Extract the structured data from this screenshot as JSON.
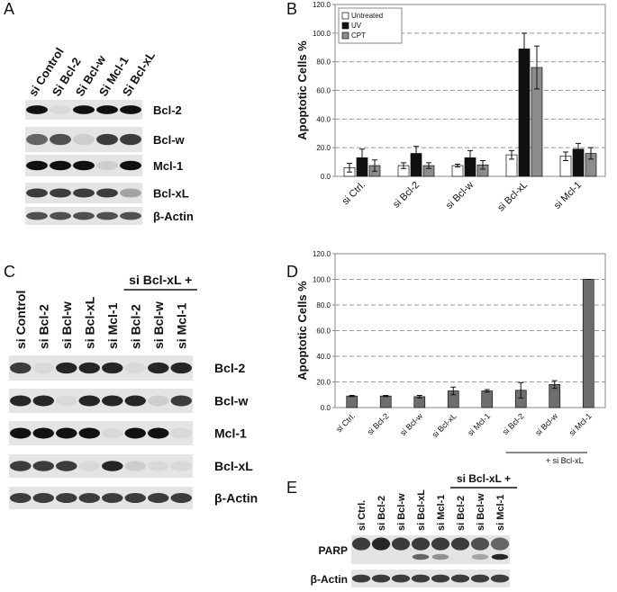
{
  "panels": [
    "A",
    "B",
    "C",
    "D",
    "E"
  ],
  "blot_a": {
    "lanes": [
      "si Control",
      "Si Bcl-2",
      "Si Bcl-w",
      "Si Mcl-1",
      "Si Bcl-xL"
    ],
    "rows": [
      "Bcl-2",
      "Bcl-w",
      "Mcl-1",
      "Bcl-xL",
      "β-Actin"
    ]
  },
  "blot_c": {
    "group_label": "si Bcl-xL +",
    "lanes": [
      "si Control",
      "si Bcl-2",
      "si Bcl-w",
      "si Bcl-xL",
      "si Mcl-1",
      "si Bcl-2",
      "si Bcl-w",
      "si Mcl-1"
    ],
    "rows": [
      "Bcl-2",
      "Bcl-w",
      "Mcl-1",
      "Bcl-xL",
      "β-Actin"
    ]
  },
  "blot_e": {
    "group_label": "si Bcl-xL +",
    "lanes": [
      "si Ctrl.",
      "si Bcl-2",
      "si Bcl-w",
      "si Bcl-xL",
      "si Mcl-1",
      "si Bcl-2",
      "si Bcl-w",
      "si Mcl-1"
    ],
    "rows": [
      "PARP",
      "β-Actin"
    ]
  },
  "chart_data": [
    {
      "type": "bar",
      "y_label": "Apoptotic Cells %",
      "categories": [
        "si Ctrl.",
        "si Bcl-2",
        "si Bcl-w",
        "si Bcl-xL",
        "si Mcl-1"
      ],
      "series": [
        {
          "name": "Untreated",
          "color": "#ffffff",
          "values": [
            6,
            7.5,
            7.5,
            15,
            14
          ],
          "errors": [
            3,
            2,
            1,
            3,
            3
          ]
        },
        {
          "name": "UV",
          "color": "#111111",
          "values": [
            13,
            16,
            13,
            89,
            19
          ],
          "errors": [
            6,
            5,
            5,
            11,
            4
          ]
        },
        {
          "name": "CPT",
          "color": "#8c8c8c",
          "values": [
            7.5,
            7.5,
            8,
            76,
            16
          ],
          "errors": [
            4,
            2,
            3,
            15,
            4
          ]
        }
      ],
      "ylim": [
        0,
        120
      ],
      "yticks": [
        {
          "value": 0,
          "label": "0.0"
        },
        {
          "value": 20,
          "label": "20.0"
        },
        {
          "value": 40,
          "label": "40.0"
        },
        {
          "value": 60,
          "label": "60.0"
        },
        {
          "value": 80,
          "label": "80.0"
        },
        {
          "value": 100,
          "label": "100.0"
        },
        {
          "value": 120,
          "label": "120.0"
        }
      ],
      "grid": true,
      "legend": "upper left"
    },
    {
      "type": "bar",
      "y_label": "Apoptotic Cells %",
      "group_label": "+ si Bcl-xL",
      "categories": [
        "si Ctrl.",
        "si Bcl-2",
        "si Bcl-w",
        "si Bcl-xL",
        "si Mcl-1",
        "si Bcl-2",
        "si Bcl-w",
        "si Mcl-1"
      ],
      "series": [
        {
          "color": "#6e6e6e",
          "values": [
            9,
            9,
            8.5,
            13,
            13,
            13.5,
            18,
            100
          ],
          "errors": [
            0.5,
            0.5,
            1,
            3,
            1,
            6,
            3,
            0
          ]
        }
      ],
      "ylim": [
        0,
        120
      ],
      "yticks": [
        {
          "value": 0,
          "label": "0.0"
        },
        {
          "value": 20,
          "label": "20.0"
        },
        {
          "value": 40,
          "label": "40.0"
        },
        {
          "value": 60,
          "label": "60.0"
        },
        {
          "value": 80,
          "label": "80.0"
        },
        {
          "value": 100,
          "label": "100.0"
        },
        {
          "value": 120,
          "label": "120.0"
        }
      ],
      "grid": true
    }
  ]
}
